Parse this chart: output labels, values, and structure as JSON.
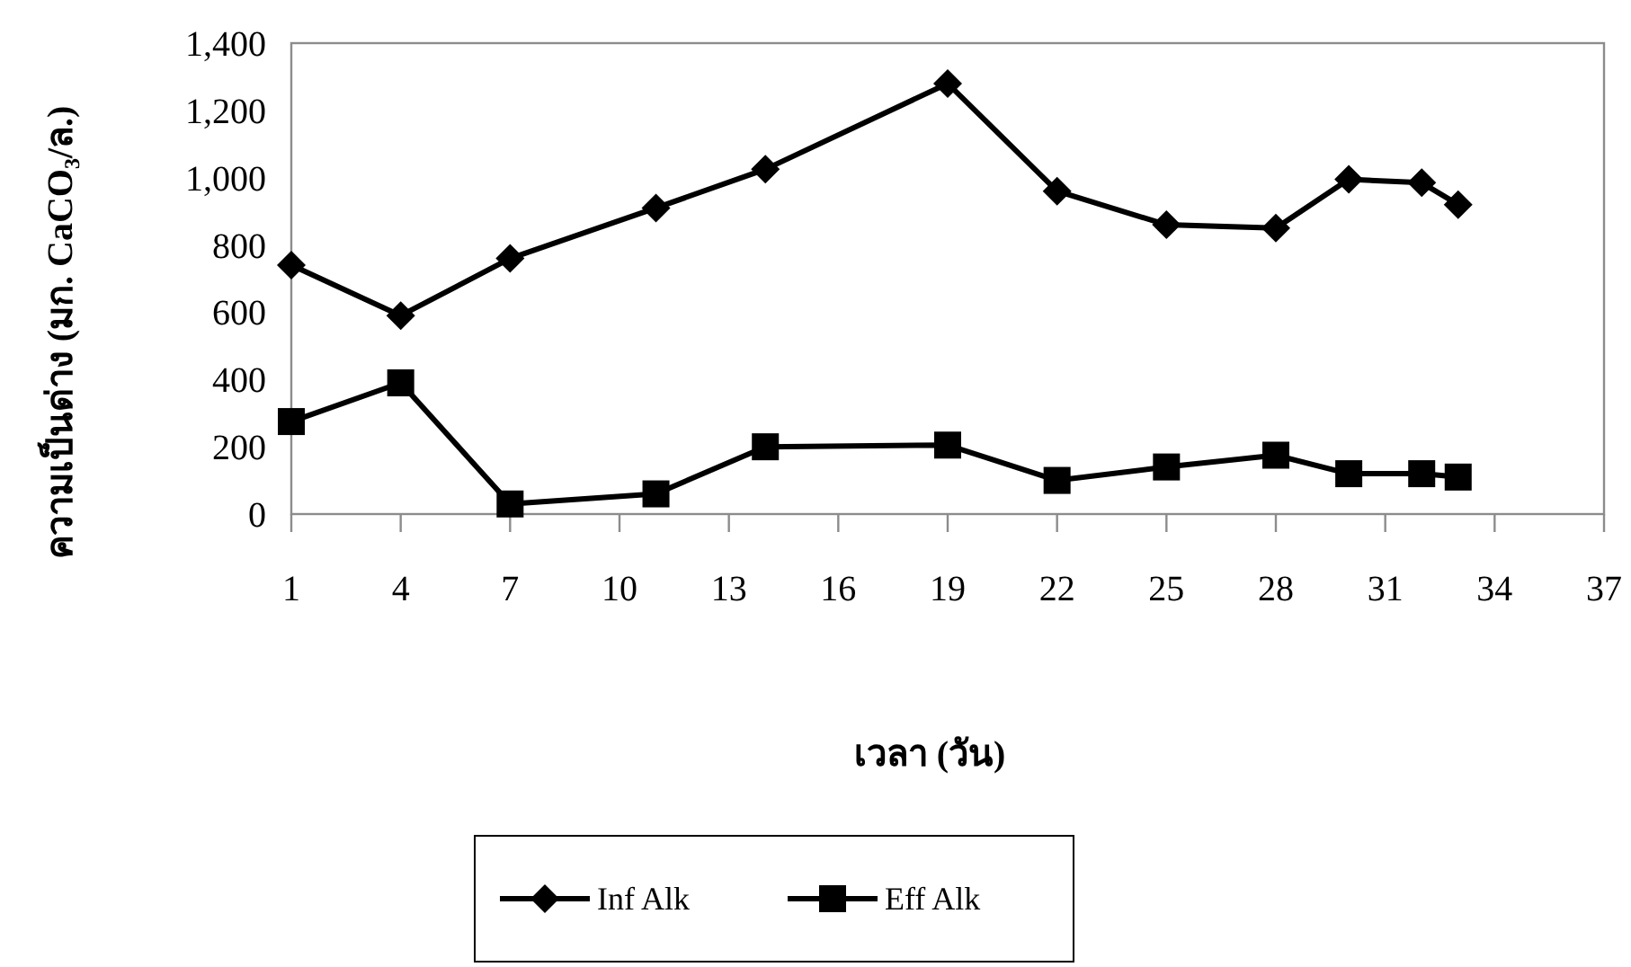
{
  "chart_data": {
    "type": "line",
    "xlabel": "เวลา (วัน)",
    "ylabel": "ความเป็นด่าง (มก. CaCO₃/ล.)",
    "x": [
      1,
      4,
      7,
      11,
      14,
      19,
      22,
      25,
      28,
      30,
      32,
      33
    ],
    "series": [
      {
        "name": "Inf Alk",
        "color": "#000000",
        "marker": "diamond",
        "values": [
          740,
          590,
          760,
          910,
          1025,
          1280,
          960,
          860,
          850,
          995,
          985,
          920
        ]
      },
      {
        "name": "Eff Alk",
        "color": "#000000",
        "marker": "square",
        "values": [
          275,
          390,
          30,
          60,
          200,
          205,
          100,
          140,
          175,
          120,
          120,
          110
        ]
      }
    ],
    "xlim": [
      1,
      37
    ],
    "xticks": [
      1,
      4,
      7,
      10,
      13,
      16,
      19,
      22,
      25,
      28,
      31,
      34,
      37
    ],
    "ylim": [
      0,
      1400
    ],
    "yticks": [
      {
        "value": 0,
        "label": "0"
      },
      {
        "value": 200,
        "label": "200"
      },
      {
        "value": 400,
        "label": "400"
      },
      {
        "value": 600,
        "label": "600"
      },
      {
        "value": 800,
        "label": "800"
      },
      {
        "value": 1000,
        "label": "1,000"
      },
      {
        "value": 1200,
        "label": "1,200"
      },
      {
        "value": 1400,
        "label": "1,400"
      }
    ],
    "grid": false,
    "legend": "bottom",
    "line_style": "solid"
  }
}
